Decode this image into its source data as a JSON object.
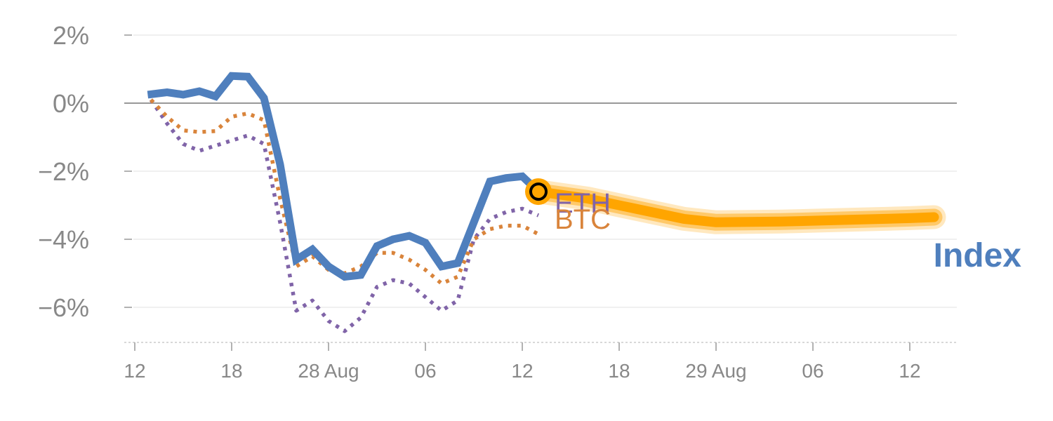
{
  "chart_data": {
    "type": "line",
    "y_axis": {
      "ticks": [
        2,
        0,
        -2,
        -4,
        -6
      ],
      "tick_labels": [
        "2%",
        "0%",
        "−2%",
        "−4%",
        "−6%"
      ],
      "range": [
        -7,
        2
      ]
    },
    "x_axis": {
      "tick_labels": [
        "12",
        "18",
        "28 Aug",
        "06",
        "12",
        "18",
        "29 Aug",
        "06",
        "12"
      ],
      "tick_days": [
        0,
        6,
        12,
        18,
        24,
        30,
        36,
        42,
        48
      ],
      "range_days": [
        0,
        51
      ]
    },
    "grid": true,
    "zero_line": true,
    "highlight_point": {
      "x": 25,
      "y": -2.6
    },
    "series": [
      {
        "name": "Index",
        "style": "solid",
        "color": "#4f7fbd",
        "points": [
          [
            0.8,
            0.25
          ],
          [
            2,
            0.32
          ],
          [
            3,
            0.25
          ],
          [
            4,
            0.35
          ],
          [
            5,
            0.2
          ],
          [
            6,
            0.8
          ],
          [
            7,
            0.78
          ],
          [
            8,
            0.15
          ],
          [
            9,
            -1.8
          ],
          [
            10,
            -4.6
          ],
          [
            11,
            -4.3
          ],
          [
            12,
            -4.8
          ],
          [
            13,
            -5.1
          ],
          [
            14,
            -5.05
          ],
          [
            15,
            -4.2
          ],
          [
            16,
            -4.0
          ],
          [
            17,
            -3.9
          ],
          [
            18,
            -4.1
          ],
          [
            19,
            -4.8
          ],
          [
            20,
            -4.7
          ],
          [
            21,
            -3.5
          ],
          [
            22,
            -2.3
          ],
          [
            23,
            -2.2
          ],
          [
            24,
            -2.15
          ],
          [
            25,
            -2.6
          ]
        ]
      },
      {
        "name": "ETH",
        "style": "dotted",
        "color": "#8064a8",
        "points": [
          [
            1,
            0.1
          ],
          [
            2,
            -0.6
          ],
          [
            3,
            -1.2
          ],
          [
            4,
            -1.4
          ],
          [
            5,
            -1.25
          ],
          [
            6,
            -1.1
          ],
          [
            7,
            -0.95
          ],
          [
            8,
            -1.2
          ],
          [
            9,
            -3.5
          ],
          [
            10,
            -6.1
          ],
          [
            11,
            -5.8
          ],
          [
            12,
            -6.4
          ],
          [
            13,
            -6.7
          ],
          [
            14,
            -6.3
          ],
          [
            15,
            -5.4
          ],
          [
            16,
            -5.2
          ],
          [
            17,
            -5.3
          ],
          [
            18,
            -5.7
          ],
          [
            19,
            -6.1
          ],
          [
            20,
            -5.8
          ],
          [
            21,
            -4.0
          ],
          [
            22,
            -3.4
          ],
          [
            23,
            -3.2
          ],
          [
            24,
            -3.1
          ],
          [
            25,
            -3.3
          ]
        ]
      },
      {
        "name": "BTC",
        "style": "dotted",
        "color": "#d9843b",
        "points": [
          [
            1,
            0.1
          ],
          [
            2,
            -0.4
          ],
          [
            3,
            -0.8
          ],
          [
            4,
            -0.85
          ],
          [
            5,
            -0.82
          ],
          [
            6,
            -0.4
          ],
          [
            7,
            -0.3
          ],
          [
            8,
            -0.5
          ],
          [
            9,
            -2.8
          ],
          [
            10,
            -4.8
          ],
          [
            11,
            -4.5
          ],
          [
            12,
            -4.9
          ],
          [
            13,
            -5.0
          ],
          [
            14,
            -4.8
          ],
          [
            15,
            -4.4
          ],
          [
            16,
            -4.4
          ],
          [
            17,
            -4.6
          ],
          [
            18,
            -4.9
          ],
          [
            19,
            -5.3
          ],
          [
            20,
            -5.1
          ],
          [
            21,
            -4.0
          ],
          [
            22,
            -3.7
          ],
          [
            23,
            -3.6
          ],
          [
            24,
            -3.6
          ],
          [
            25,
            -3.85
          ]
        ]
      },
      {
        "name": "forecast",
        "style": "band",
        "color": "#ffa500",
        "points": [
          [
            25,
            -2.6
          ],
          [
            28,
            -2.8
          ],
          [
            31,
            -3.1
          ],
          [
            34,
            -3.4
          ],
          [
            36,
            -3.5
          ],
          [
            40,
            -3.48
          ],
          [
            44,
            -3.43
          ],
          [
            48,
            -3.38
          ],
          [
            49.5,
            -3.35
          ]
        ]
      }
    ],
    "labels": {
      "eth": "ETH",
      "btc": "BTC",
      "index": "Index"
    }
  }
}
